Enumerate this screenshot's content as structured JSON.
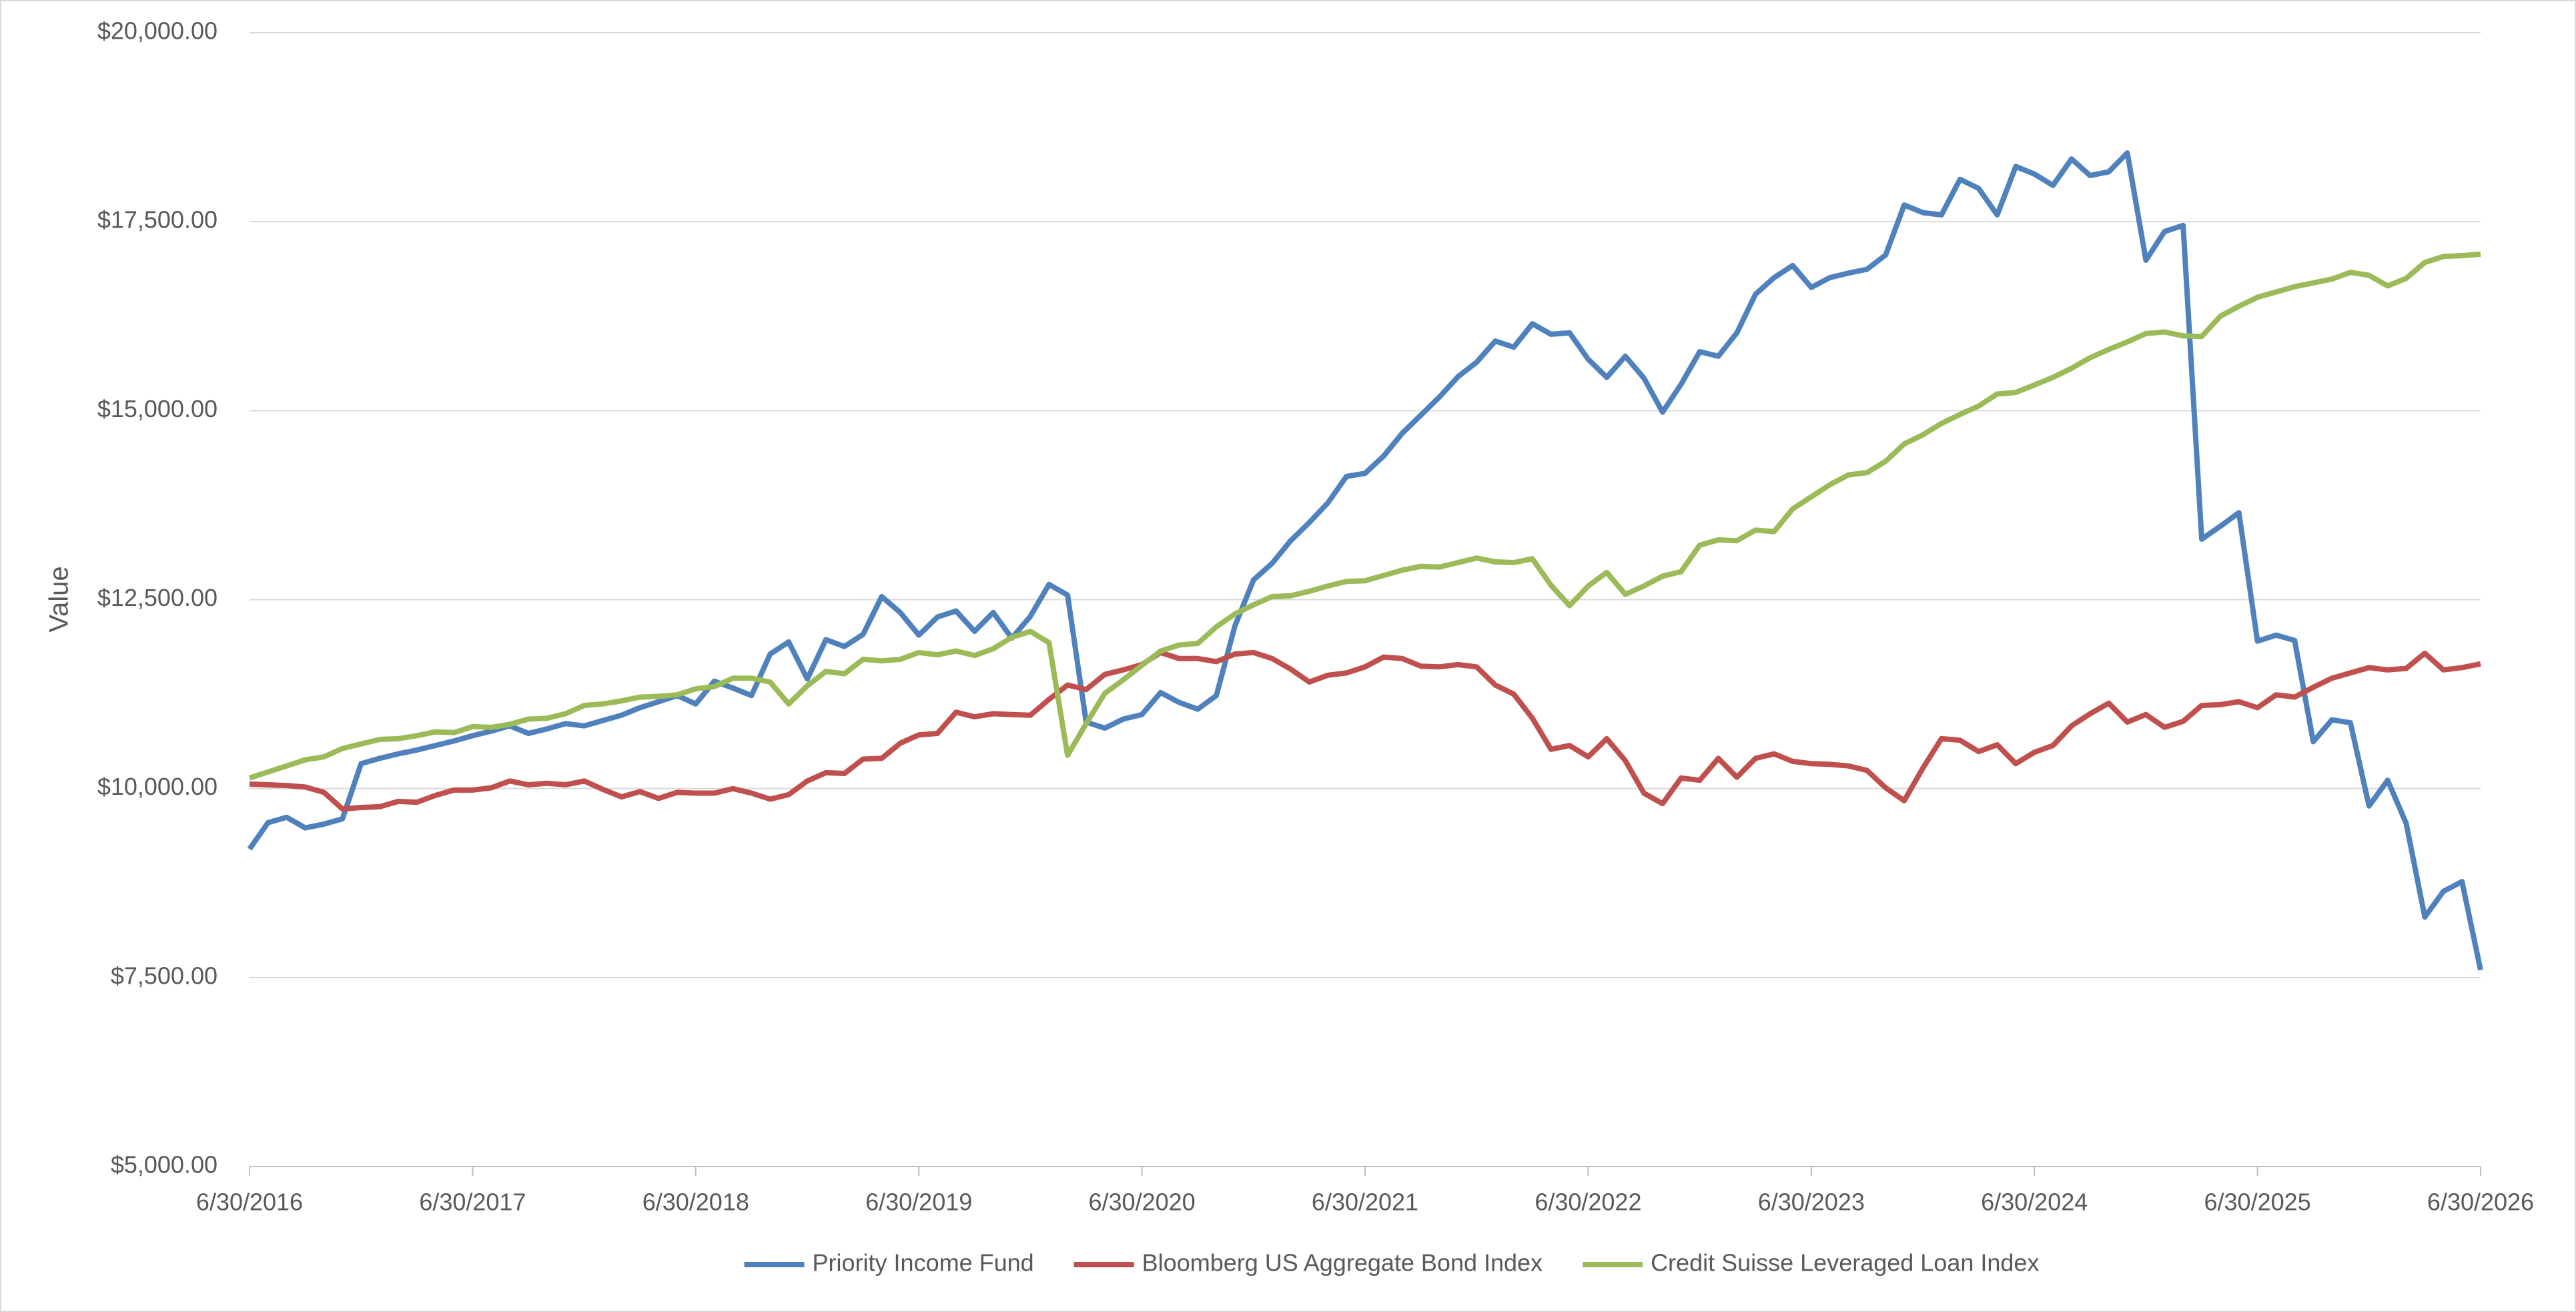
{
  "chart_data": {
    "type": "line",
    "y_label": "Value",
    "categories": [
      "6/30/2016",
      null,
      null,
      null,
      null,
      null,
      null,
      null,
      null,
      null,
      null,
      null,
      "6/30/2017",
      null,
      null,
      null,
      null,
      null,
      null,
      null,
      null,
      null,
      null,
      null,
      "6/30/2018",
      null,
      null,
      null,
      null,
      null,
      null,
      null,
      null,
      null,
      null,
      null,
      "6/30/2019",
      null,
      null,
      null,
      null,
      null,
      null,
      null,
      null,
      null,
      null,
      null,
      "6/30/2020",
      null,
      null,
      null,
      null,
      null,
      null,
      null,
      null,
      null,
      null,
      null,
      "6/30/2021",
      null,
      null,
      null,
      null,
      null,
      null,
      null,
      null,
      null,
      null,
      null,
      "6/30/2022",
      null,
      null,
      null,
      null,
      null,
      null,
      null,
      null,
      null,
      null,
      null,
      "6/30/2023",
      null,
      null,
      null,
      null,
      null,
      null,
      null,
      null,
      null,
      null,
      null,
      "6/30/2024",
      null,
      null,
      null,
      null,
      null,
      null,
      null,
      null,
      null,
      null,
      null,
      "6/30/2025",
      null,
      null,
      null,
      null,
      null,
      null,
      null,
      null,
      null,
      null,
      null,
      "6/30/2026"
    ],
    "series": [
      {
        "name": "Priority Income Fund",
        "color": "#4f81bd",
        "values": [
          9200,
          9550,
          9620,
          9480,
          9530,
          9600,
          10330,
          10400,
          10460,
          10510,
          10570,
          10630,
          10700,
          10760,
          10830,
          10730,
          10790,
          10860,
          10830,
          10900,
          10970,
          11070,
          11150,
          11230,
          11120,
          11420,
          11330,
          11230,
          11780,
          11940,
          11450,
          11970,
          11880,
          12040,
          12540,
          12330,
          12030,
          12270,
          12350,
          12080,
          12330,
          11990,
          12280,
          12700,
          12560,
          10880,
          10800,
          10920,
          10980,
          11270,
          11140,
          11050,
          11230,
          12150,
          12760,
          12980,
          13280,
          13520,
          13780,
          14130,
          14170,
          14400,
          14700,
          14940,
          15180,
          15450,
          15640,
          15920,
          15840,
          16150,
          16010,
          16030,
          15680,
          15440,
          15720,
          15430,
          14980,
          15350,
          15780,
          15720,
          16030,
          16540,
          16760,
          16920,
          16630,
          16760,
          16820,
          16870,
          17060,
          17720,
          17620,
          17590,
          18060,
          17940,
          17590,
          18230,
          18130,
          17980,
          18330,
          18110,
          18160,
          18410,
          16990,
          17370,
          17450,
          13300,
          13470,
          13650,
          11950,
          12030,
          11960,
          10620,
          10910,
          10870,
          9770,
          10110,
          9540,
          8300,
          8640,
          8770,
          7600
        ]
      },
      {
        "name": "Bloomberg US Aggregate Bond Index",
        "color": "#c0504d",
        "values": [
          10060,
          10050,
          10040,
          10020,
          9950,
          9730,
          9750,
          9760,
          9830,
          9820,
          9910,
          9980,
          9980,
          10010,
          10100,
          10050,
          10070,
          10050,
          10100,
          9990,
          9890,
          9960,
          9870,
          9950,
          9940,
          9940,
          10000,
          9940,
          9860,
          9920,
          10100,
          10210,
          10200,
          10390,
          10400,
          10600,
          10710,
          10730,
          11010,
          10950,
          10990,
          10980,
          10970,
          11180,
          11370,
          11310,
          11510,
          11570,
          11640,
          11800,
          11720,
          11720,
          11680,
          11780,
          11800,
          11720,
          11580,
          11410,
          11500,
          11530,
          11610,
          11740,
          11720,
          11620,
          11610,
          11640,
          11610,
          11370,
          11250,
          10930,
          10520,
          10570,
          10420,
          10660,
          10370,
          9940,
          9800,
          10140,
          10110,
          10400,
          10150,
          10400,
          10460,
          10360,
          10330,
          10320,
          10300,
          10240,
          10010,
          9840,
          10270,
          10660,
          10640,
          10490,
          10580,
          10330,
          10480,
          10570,
          10830,
          10990,
          11130,
          10880,
          10980,
          10810,
          10890,
          11100,
          11110,
          11150,
          11070,
          11240,
          11210,
          11340,
          11460,
          11530,
          11600,
          11570,
          11590,
          11790,
          11570,
          11600,
          11650
        ]
      },
      {
        "name": "Credit Suisse Leveraged Loan Index",
        "color": "#9bbb59",
        "values": [
          10140,
          10220,
          10300,
          10380,
          10420,
          10530,
          10590,
          10650,
          10660,
          10700,
          10750,
          10740,
          10820,
          10810,
          10850,
          10920,
          10930,
          10990,
          11100,
          11120,
          11160,
          11210,
          11220,
          11240,
          11320,
          11350,
          11460,
          11460,
          11410,
          11120,
          11360,
          11550,
          11520,
          11710,
          11690,
          11710,
          11800,
          11770,
          11820,
          11760,
          11850,
          12000,
          12080,
          11930,
          10440,
          10860,
          11260,
          11440,
          11630,
          11820,
          11900,
          11920,
          12140,
          12310,
          12430,
          12540,
          12550,
          12610,
          12680,
          12740,
          12750,
          12820,
          12890,
          12940,
          12930,
          12990,
          13050,
          13000,
          12990,
          13040,
          12690,
          12420,
          12680,
          12860,
          12570,
          12680,
          12810,
          12870,
          13220,
          13290,
          13280,
          13420,
          13400,
          13700,
          13860,
          14020,
          14150,
          14180,
          14330,
          14560,
          14680,
          14830,
          14950,
          15060,
          15220,
          15240,
          15340,
          15440,
          15560,
          15700,
          15810,
          15910,
          16020,
          16040,
          15990,
          15980,
          16250,
          16380,
          16500,
          16570,
          16640,
          16690,
          16740,
          16830,
          16790,
          16650,
          16750,
          16960,
          17040,
          17050,
          17070
        ]
      }
    ],
    "ylim": [
      5000,
      20000
    ],
    "yticks": [
      {
        "value": 5000,
        "label": "$5,000.00"
      },
      {
        "value": 7500,
        "label": "$7,500.00"
      },
      {
        "value": 10000,
        "label": "$10,000.00"
      },
      {
        "value": 12500,
        "label": "$12,500.00"
      },
      {
        "value": 15000,
        "label": "$15,000.00"
      },
      {
        "value": 17500,
        "label": "$17,500.00"
      },
      {
        "value": 20000,
        "label": "$20,000.00"
      }
    ],
    "grid": true,
    "legend": "bottom"
  }
}
